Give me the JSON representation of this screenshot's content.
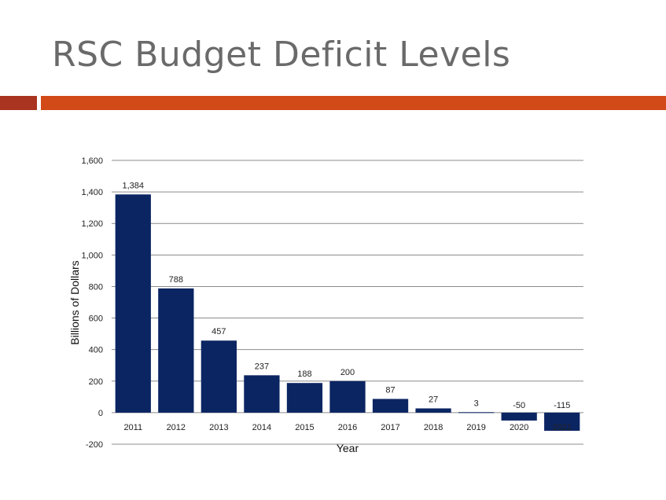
{
  "slide": {
    "title": "RSC Budget Deficit Levels"
  },
  "colors": {
    "accent_short": "#a9341f",
    "accent_long": "#d24a17",
    "bar": "#0b2563",
    "grid": "#8c8c8c"
  },
  "chart_data": {
    "type": "bar",
    "categories": [
      "2011",
      "2012",
      "2013",
      "2014",
      "2015",
      "2016",
      "2017",
      "2018",
      "2019",
      "2020",
      "2021"
    ],
    "values": [
      1384,
      788,
      457,
      237,
      188,
      200,
      87,
      27,
      3,
      -50,
      -115
    ],
    "value_labels": [
      "1,384",
      "788",
      "457",
      "237",
      "188",
      "200",
      "87",
      "27",
      "3",
      "-50",
      "-115"
    ],
    "ylim": [
      -200,
      1600
    ],
    "yticks": [
      1600,
      1400,
      1200,
      1000,
      800,
      600,
      400,
      200,
      0,
      -200
    ],
    "ytick_labels": [
      "1,600",
      "1,400",
      "1,200",
      "1,000",
      "800",
      "600",
      "400",
      "200",
      "0",
      "-200"
    ],
    "xlabel": "Year",
    "ylabel": "Billions of Dollars",
    "grid": true,
    "legend": "none"
  }
}
